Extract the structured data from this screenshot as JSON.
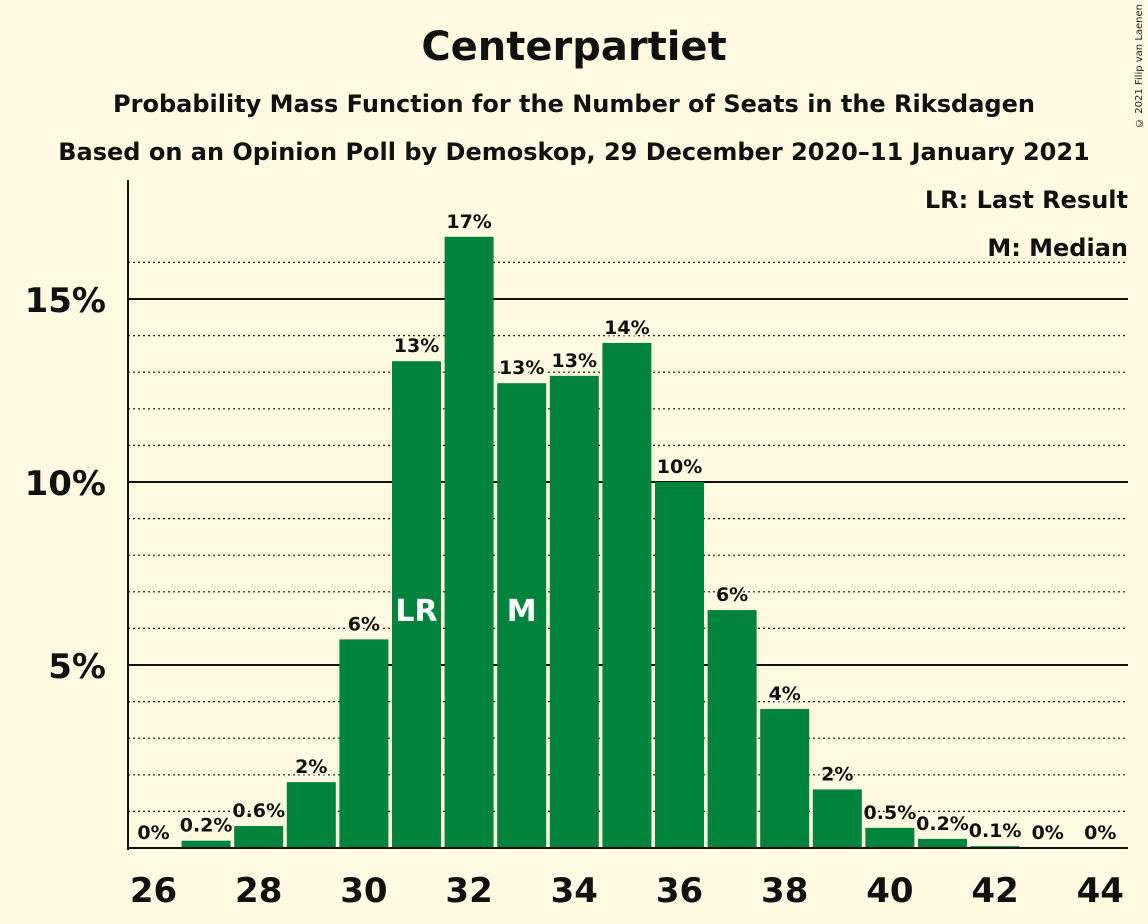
{
  "title": "Centerpartiet",
  "subtitle1": "Probability Mass Function for the Number of Seats in the Riksdagen",
  "subtitle2": "Based on an Opinion Poll by Demoskop, 29 December 2020–11 January 2021",
  "copyright": "© 2021 Filip van Laenen",
  "legend": {
    "last_result": "LR: Last Result",
    "median": "M: Median"
  },
  "colors": {
    "bar": "#00843d",
    "background": "#fff9e1"
  },
  "chart_data": {
    "type": "bar",
    "x": [
      26,
      27,
      28,
      29,
      30,
      31,
      32,
      33,
      34,
      35,
      36,
      37,
      38,
      39,
      40,
      41,
      42,
      43,
      44
    ],
    "values": [
      0.0,
      0.2,
      0.6,
      1.8,
      5.7,
      13.3,
      16.7,
      12.7,
      12.9,
      13.8,
      10.0,
      6.5,
      3.8,
      1.6,
      0.55,
      0.25,
      0.05,
      0.0,
      0.0
    ],
    "data_labels": [
      "0%",
      "0.2%",
      "0.6%",
      "2%",
      "6%",
      "13%",
      "17%",
      "13%",
      "13%",
      "14%",
      "10%",
      "6%",
      "4%",
      "2%",
      "0.5%",
      "0.2%",
      "0.1%",
      "0%",
      "0%"
    ],
    "x_ticks": [
      26,
      28,
      30,
      32,
      34,
      36,
      38,
      40,
      42,
      44
    ],
    "y_ticks": [
      5,
      10,
      15
    ],
    "y_tick_labels": [
      "5%",
      "10%",
      "15%"
    ],
    "y_minor_ticks": [
      1,
      2,
      3,
      4,
      6,
      7,
      8,
      9,
      11,
      12,
      13,
      14,
      16
    ],
    "ylim": [
      0,
      18
    ],
    "markers": [
      {
        "x": 31,
        "label": "LR"
      },
      {
        "x": 33,
        "label": "M"
      }
    ]
  }
}
